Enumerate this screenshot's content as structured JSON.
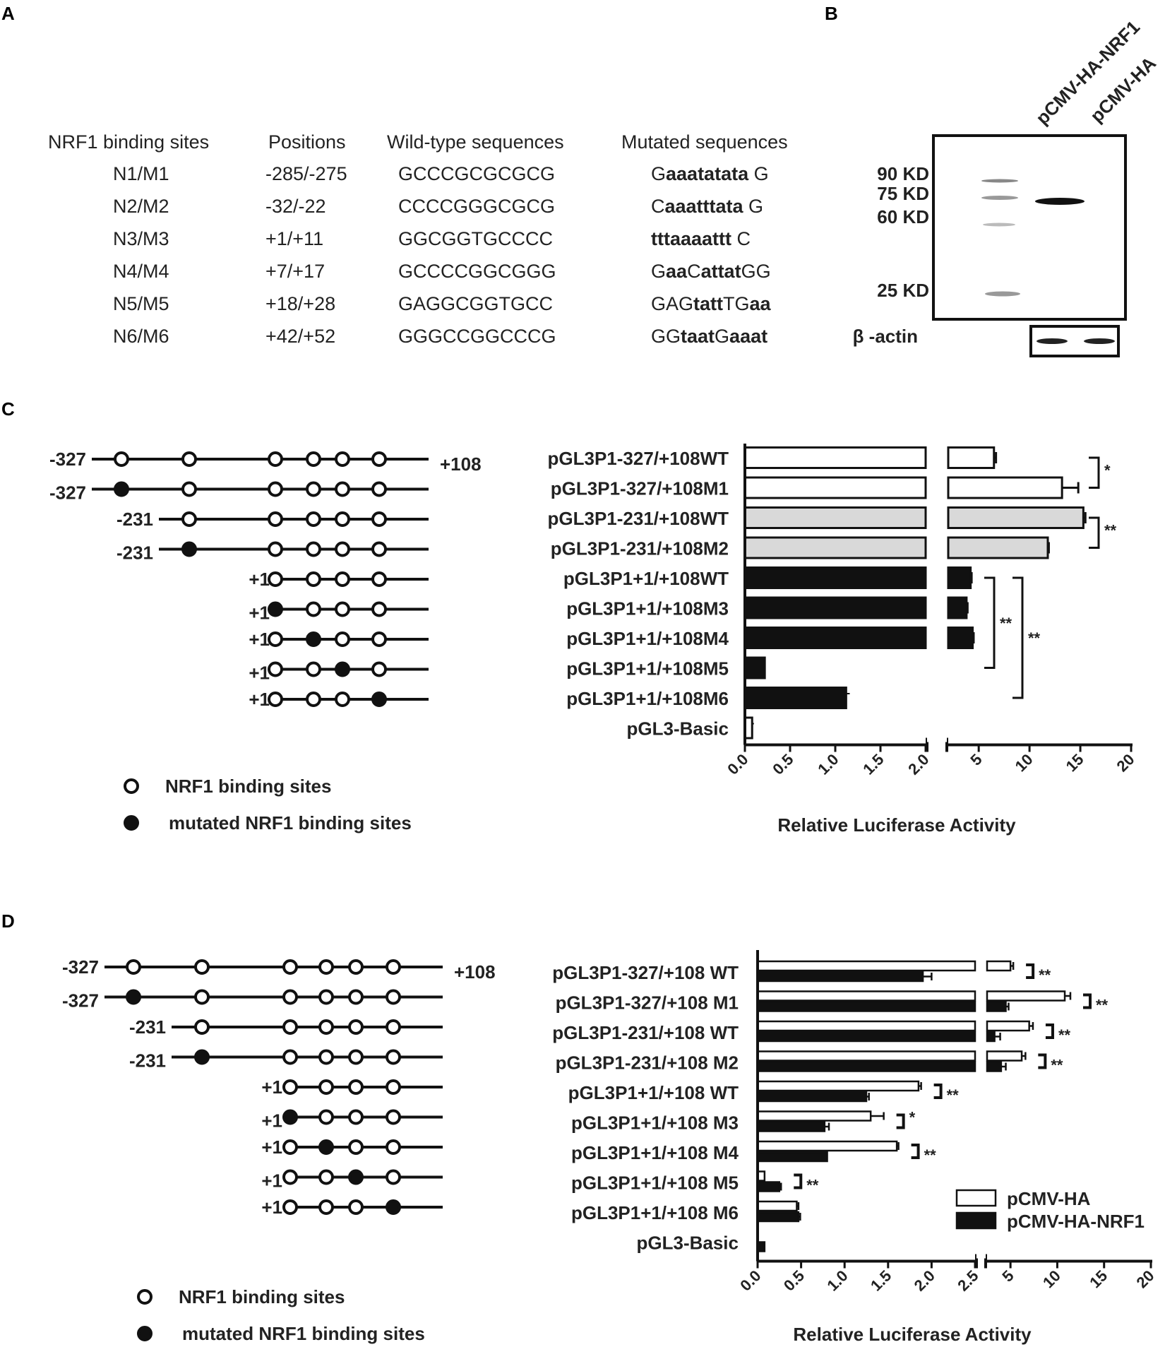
{
  "panels": {
    "a": "A",
    "b": "B",
    "c": "C",
    "d": "D"
  },
  "table": {
    "headers": [
      "NRF1 binding sites",
      "Positions",
      "Wild-type sequences",
      "Mutated sequences"
    ],
    "rows": [
      {
        "site": "N1/M1",
        "pos": "-285/-275",
        "wt": "GCCCGCGCGCG",
        "mut": [
          [
            "G",
            false
          ],
          [
            "aaatatata",
            true
          ],
          [
            " G",
            false
          ]
        ]
      },
      {
        "site": "N2/M2",
        "pos": "-32/-22",
        "wt": "CCCCGGGCGCG",
        "mut": [
          [
            "C",
            false
          ],
          [
            "aaatttata",
            true
          ],
          [
            " G",
            false
          ]
        ]
      },
      {
        "site": "N3/M3",
        "pos": "+1/+11",
        "wt": "GGCGGTGCCCC",
        "mut": [
          [
            "tttaaaattt",
            true
          ],
          [
            " C",
            false
          ]
        ]
      },
      {
        "site": "N4/M4",
        "pos": "+7/+17",
        "wt": "GCCCCGGCGGG",
        "mut": [
          [
            "G",
            false
          ],
          [
            "aa",
            true
          ],
          [
            "C",
            false
          ],
          [
            "attat",
            true
          ],
          [
            "GG",
            false
          ]
        ]
      },
      {
        "site": "N5/M5",
        "pos": "+18/+28",
        "wt": "GAGGCGGTGCC",
        "mut": [
          [
            "GAG",
            false
          ],
          [
            "tatt",
            true
          ],
          [
            "TG",
            false
          ],
          [
            "aa",
            true
          ]
        ]
      },
      {
        "site": "N6/M6",
        "pos": "+42/+52",
        "wt": "GGGCCGGCCCG",
        "mut": [
          [
            "GG",
            false
          ],
          [
            "taat",
            true
          ],
          [
            "G",
            false
          ],
          [
            "aaat",
            true
          ]
        ]
      }
    ]
  },
  "blot": {
    "lanes": [
      "pCMV-HA-NRF1",
      "pCMV-HA"
    ],
    "markers": [
      "90 KD",
      "75 KD",
      "60 KD",
      "25 KD"
    ],
    "loading": "β -actin"
  },
  "diagram_legend": {
    "open": "NRF1 binding sites",
    "filled": "mutated NRF1 binding sites"
  },
  "constructs": [
    {
      "start": "-327",
      "end": "+108",
      "mutated": null
    },
    {
      "start": "-327",
      "end": "",
      "mutated": 1
    },
    {
      "start": "-231",
      "end": "",
      "mutated": null
    },
    {
      "start": "-231",
      "end": "",
      "mutated": 2
    },
    {
      "start": "+1",
      "end": "",
      "mutated": null
    },
    {
      "start": "+1",
      "end": "",
      "mutated": 3
    },
    {
      "start": "+1",
      "end": "",
      "mutated": 4
    },
    {
      "start": "+1",
      "end": "",
      "mutated": 5
    },
    {
      "start": "+1",
      "end": "",
      "mutated": 6
    }
  ],
  "colors": {
    "white_bar": "#ffffff",
    "grey_bar": "#d9d9d9",
    "black_bar": "#111111"
  },
  "chart_data": [
    {
      "type": "bar",
      "orientation": "horizontal",
      "categories": [
        "pGL3P1-327/+108WT",
        "pGL3P1-327/+108M1",
        "pGL3P1-231/+108WT",
        "pGL3P1-231/+108M2",
        "pGL3P1+1/+108WT",
        "pGL3P1+1/+108M3",
        "pGL3P1+1/+108M4",
        "pGL3P1+1/+108M5",
        "pGL3P1+1/+108M6",
        "pGL3-Basic"
      ],
      "values": [
        6.5,
        13.2,
        15.3,
        11.8,
        4.2,
        3.8,
        4.4,
        0.22,
        1.12,
        0.08
      ],
      "errors": [
        0.2,
        1.6,
        0.2,
        0.1,
        0.1,
        0.1,
        0.1,
        0.0,
        0.04,
        0.02
      ],
      "bar_colors": [
        "white",
        "white",
        "grey",
        "grey",
        "black",
        "black",
        "black",
        "black",
        "black",
        "white"
      ],
      "xlabel": "Relative Luciferase Activity",
      "broken_axis": {
        "low": [
          0,
          2
        ],
        "high": [
          2,
          20
        ]
      },
      "ticks_low": [
        "0.0",
        "0.5",
        "1.0",
        "1.5",
        "2.0"
      ],
      "ticks_high": [
        "5",
        "10",
        "15",
        "20"
      ],
      "significance": [
        {
          "from": 0,
          "to": 1,
          "label": "*"
        },
        {
          "from": 2,
          "to": 3,
          "label": "**"
        },
        {
          "from": 4,
          "to": 7,
          "label": "**"
        },
        {
          "from": 4,
          "to": 8,
          "label": "**"
        }
      ]
    },
    {
      "type": "bar",
      "orientation": "horizontal",
      "categories": [
        "pGL3P1-327/+108 WT",
        "pGL3P1-327/+108 M1",
        "pGL3P1-231/+108 WT",
        "pGL3P1-231/+108 M2",
        "pGL3P1+1/+108 WT",
        "pGL3P1+1/+108 M3",
        "pGL3P1+1/+108 M4",
        "pGL3P1+1/+108 M5",
        "pGL3P1+1/+108 M6",
        "pGL3-Basic"
      ],
      "series": [
        {
          "name": "pCMV-HA",
          "values": [
            5.0,
            10.8,
            7.0,
            6.2,
            1.85,
            1.3,
            1.6,
            0.08,
            0.45,
            0.0
          ],
          "errors": [
            0.3,
            0.6,
            0.4,
            0.4,
            0.03,
            0.15,
            0.02,
            0.0,
            0.02,
            0.0
          ]
        },
        {
          "name": "pCMV-HA-NRF1",
          "values": [
            1.9,
            4.5,
            3.3,
            4.0,
            1.25,
            0.77,
            0.8,
            0.25,
            0.47,
            0.08
          ],
          "errors": [
            0.1,
            0.3,
            0.6,
            0.5,
            0.03,
            0.05,
            0.0,
            0.02,
            0.02,
            0.0
          ]
        }
      ],
      "xlabel": "Relative Luciferase Activity",
      "broken_axis": {
        "low": [
          0,
          2.5
        ],
        "high": [
          2.5,
          20
        ]
      },
      "ticks_low": [
        "0.0",
        "0.5",
        "1.0",
        "1.5",
        "2.0",
        "2.5"
      ],
      "ticks_high": [
        "5",
        "10",
        "15",
        "20"
      ],
      "significance": [
        "**",
        "**",
        "**",
        "**",
        "**",
        "*",
        "**",
        "**",
        "",
        ""
      ]
    }
  ]
}
